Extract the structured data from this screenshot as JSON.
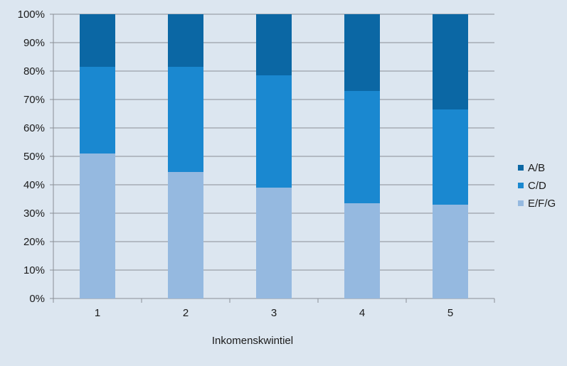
{
  "chart_data": {
    "type": "bar",
    "stacked": true,
    "categories": [
      "1",
      "2",
      "3",
      "4",
      "5"
    ],
    "series": [
      {
        "name": "E/F/G",
        "color": "#95b9e0",
        "values": [
          51,
          44.5,
          39,
          33.5,
          33
        ]
      },
      {
        "name": "C/D",
        "color": "#1a88d0",
        "values": [
          30.5,
          37,
          39.5,
          39.5,
          33.5
        ]
      },
      {
        "name": "A/B",
        "color": "#0b67a4",
        "values": [
          18.5,
          18.5,
          21.5,
          27,
          33.5
        ]
      }
    ],
    "legend_order": [
      "A/B",
      "C/D",
      "E/F/G"
    ],
    "xlabel": "Inkomenskwintiel",
    "ylabel": "",
    "ylim": [
      0,
      100
    ],
    "yticks": [
      "0%",
      "10%",
      "20%",
      "30%",
      "40%",
      "50%",
      "60%",
      "70%",
      "80%",
      "90%",
      "100%"
    ],
    "grid": true,
    "legend_position": "right"
  }
}
